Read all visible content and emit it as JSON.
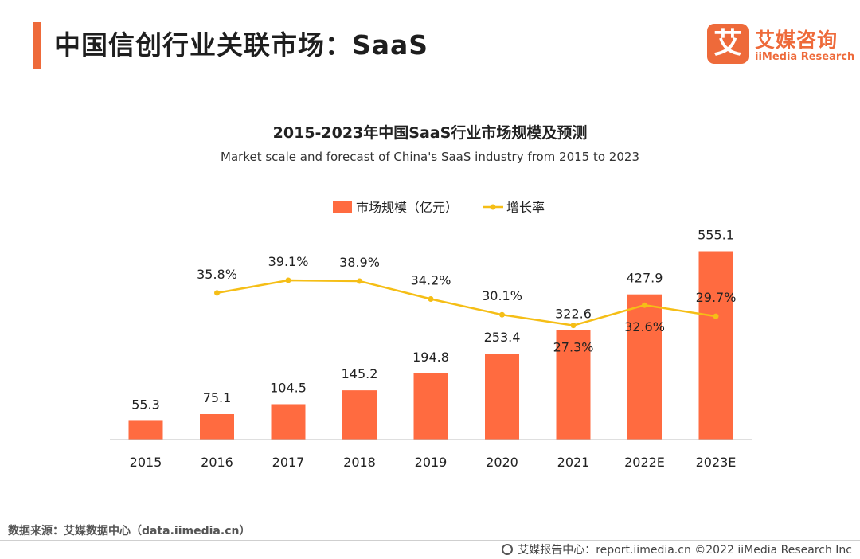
{
  "header": {
    "title": "中国信创行业关联市场：SaaS",
    "logo_badge": "艾",
    "logo_cn": "艾媒咨询",
    "logo_en": "iiMedia Research"
  },
  "colors": {
    "accent": "#ee6a3a",
    "bar": "#ff6b40",
    "line": "#f5be16"
  },
  "chart_data": {
    "type": "bar",
    "title": "2015-2023年中国SaaS行业市场规模及预测",
    "subtitle": "Market scale and forecast of China's SaaS industry from 2015 to 2023",
    "categories": [
      "2015",
      "2016",
      "2017",
      "2018",
      "2019",
      "2020",
      "2021",
      "2022E",
      "2023E"
    ],
    "series": [
      {
        "name": "市场规模（亿元）",
        "type": "bar",
        "values": [
          55.3,
          75.1,
          104.5,
          145.2,
          194.8,
          253.4,
          322.6,
          427.9,
          555.1
        ],
        "labels": [
          "55.3",
          "75.1",
          "104.5",
          "145.2",
          "194.8",
          "253.4",
          "322.6",
          "427.9",
          "555.1"
        ]
      },
      {
        "name": "增长率",
        "type": "line",
        "values": [
          null,
          35.8,
          39.1,
          38.9,
          34.2,
          30.1,
          27.3,
          32.6,
          29.7
        ],
        "labels": [
          "",
          "35.8%",
          "39.1%",
          "38.9%",
          "34.2%",
          "30.1%",
          "27.3%",
          "32.6%",
          "29.7%"
        ]
      }
    ],
    "legend_position": "top-center",
    "grid": false
  },
  "source": "数据来源：艾媒数据中心（data.iimedia.cn）",
  "footer": {
    "text": "艾媒报告中心：report.iimedia.cn   ©2022  iiMedia Research  Inc"
  }
}
